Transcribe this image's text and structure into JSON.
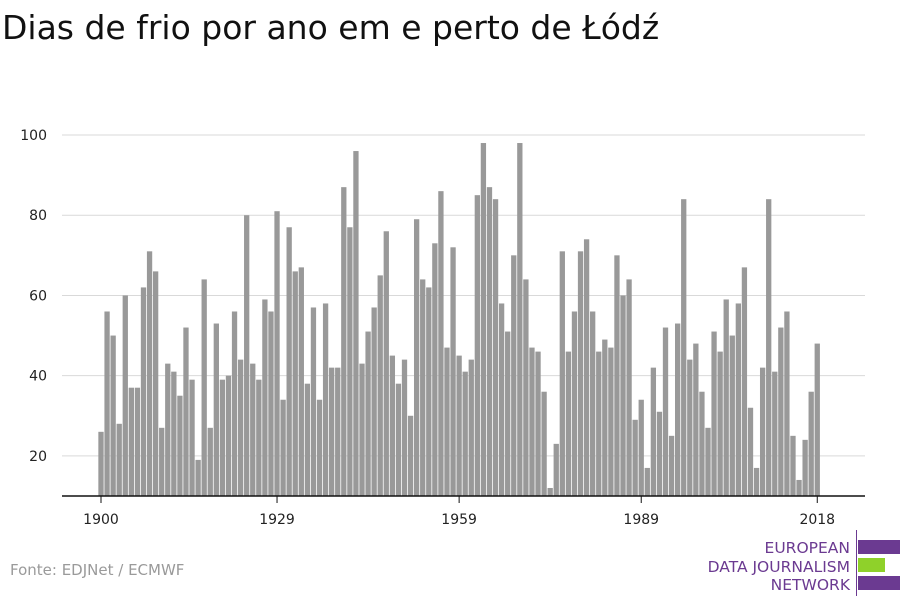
{
  "title": "Dias de frio por ano em e perto de Łódź",
  "source": "Fonte: EDJNet / ECMWF",
  "logo": {
    "line1": "EUROPEAN",
    "line2": "DATA JOURNALISM",
    "line3": "NETWORK",
    "colors": [
      "#6b3a91",
      "#8fd12a",
      "#6b3a91"
    ]
  },
  "colors": {
    "bar": "#999999",
    "grid": "#d9d9d9",
    "axis": "#111111"
  },
  "chart_data": {
    "type": "bar",
    "title": "Dias de frio por ano em e perto de Łódź",
    "xlabel": "",
    "ylabel": "",
    "ylim": [
      10,
      100
    ],
    "yticks": [
      20,
      40,
      60,
      80,
      100
    ],
    "xtick_labels": [
      "1900",
      "1929",
      "1959",
      "1989",
      "2018"
    ],
    "grid": true,
    "x_start": 1900,
    "categories": [
      1900,
      1901,
      1902,
      1903,
      1904,
      1905,
      1906,
      1907,
      1908,
      1909,
      1910,
      1911,
      1912,
      1913,
      1914,
      1915,
      1916,
      1917,
      1918,
      1919,
      1920,
      1921,
      1922,
      1923,
      1924,
      1925,
      1926,
      1927,
      1928,
      1929,
      1930,
      1931,
      1932,
      1933,
      1934,
      1935,
      1936,
      1937,
      1938,
      1939,
      1940,
      1941,
      1942,
      1943,
      1944,
      1945,
      1946,
      1947,
      1948,
      1949,
      1950,
      1951,
      1952,
      1953,
      1954,
      1955,
      1956,
      1957,
      1958,
      1959,
      1960,
      1961,
      1962,
      1963,
      1964,
      1965,
      1966,
      1967,
      1968,
      1969,
      1970,
      1971,
      1972,
      1973,
      1974,
      1975,
      1976,
      1977,
      1978,
      1979,
      1980,
      1981,
      1982,
      1983,
      1984,
      1985,
      1986,
      1987,
      1988,
      1989,
      1990,
      1991,
      1992,
      1993,
      1994,
      1995,
      1996,
      1997,
      1998,
      1999,
      2000,
      2001,
      2002,
      2003,
      2004,
      2005,
      2006,
      2007,
      2008,
      2009,
      2010,
      2011,
      2012,
      2013,
      2014,
      2015,
      2016,
      2017,
      2018
    ],
    "values": [
      26,
      56,
      50,
      28,
      60,
      37,
      37,
      62,
      71,
      66,
      27,
      43,
      41,
      35,
      52,
      39,
      19,
      64,
      27,
      53,
      39,
      40,
      56,
      44,
      80,
      43,
      39,
      59,
      56,
      81,
      34,
      77,
      66,
      67,
      38,
      57,
      34,
      58,
      42,
      42,
      87,
      77,
      96,
      43,
      51,
      57,
      65,
      76,
      45,
      38,
      44,
      30,
      79,
      64,
      62,
      73,
      86,
      47,
      72,
      45,
      41,
      44,
      85,
      98,
      87,
      84,
      58,
      51,
      70,
      98,
      64,
      47,
      46,
      36,
      12,
      23,
      71,
      46,
      56,
      71,
      74,
      56,
      46,
      49,
      47,
      70,
      60,
      64,
      29,
      34,
      17,
      42,
      31,
      52,
      25,
      53,
      84,
      44,
      48,
      36,
      27,
      51,
      46,
      59,
      50,
      58,
      67,
      32,
      17,
      42,
      84,
      41,
      52,
      56,
      25,
      14,
      24,
      36,
      48
    ]
  }
}
